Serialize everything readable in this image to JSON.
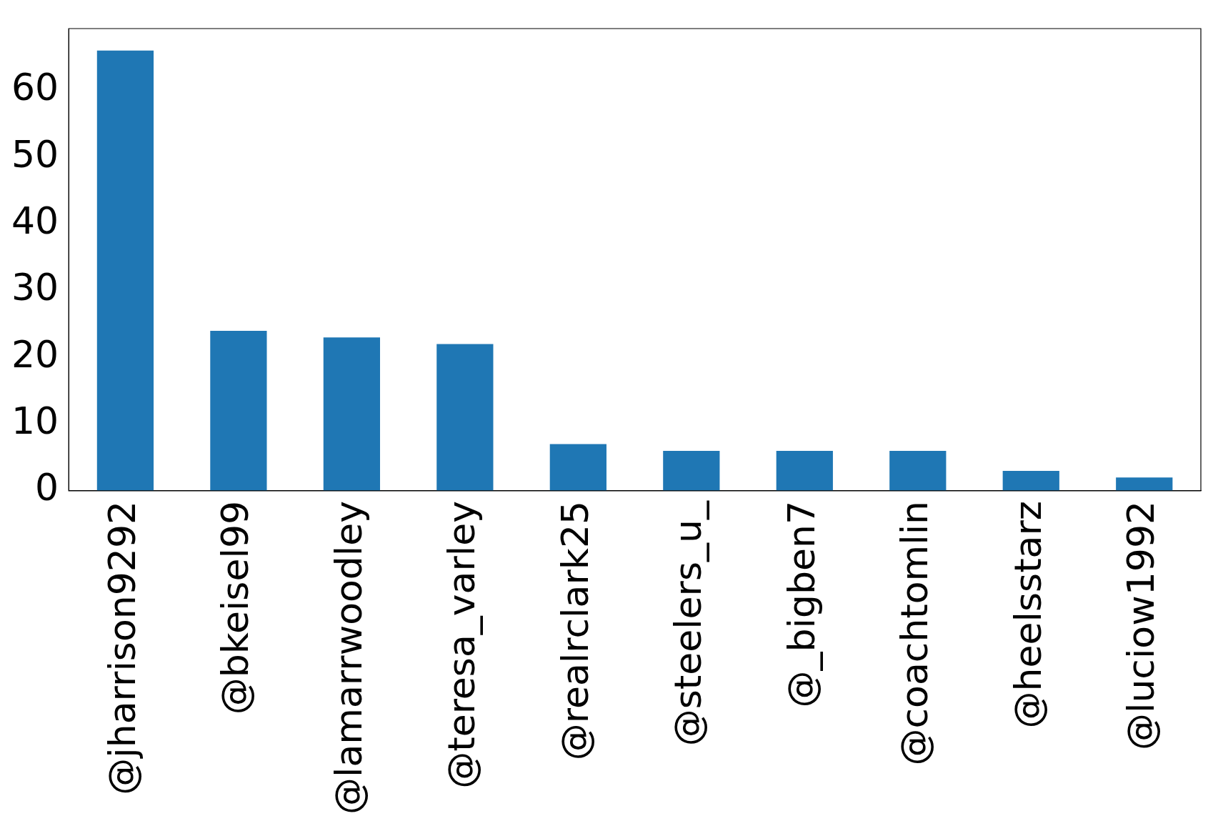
{
  "chart_data": {
    "type": "bar",
    "categories": [
      "@jharrison9292",
      "@bkeisel99",
      "@lamarrwoodley",
      "@teresa_varley",
      "@realrclark25",
      "@steelers_u_",
      "@_bigben7",
      "@coachtomlin",
      "@heelsstarz",
      "@luciow1992"
    ],
    "values": [
      66,
      24,
      23,
      22,
      7,
      6,
      6,
      6,
      3,
      2
    ],
    "color": "#1f77b4",
    "ylim": [
      0,
      69.3
    ],
    "yticks": [
      0,
      10,
      20,
      30,
      40,
      50,
      60
    ],
    "grid": false,
    "legend": false
  }
}
